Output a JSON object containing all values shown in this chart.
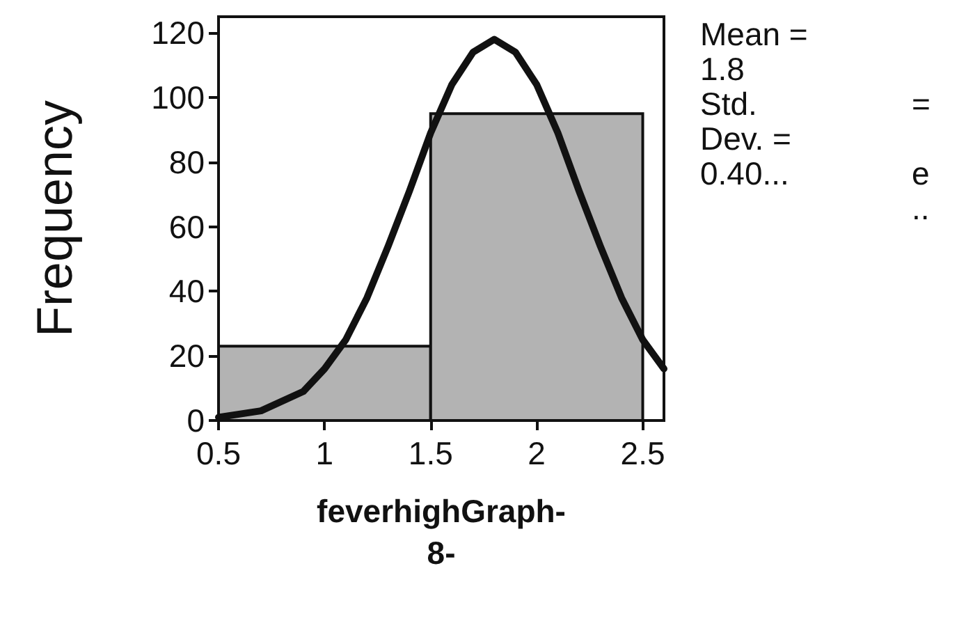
{
  "chart_data": {
    "type": "histogram",
    "xlabel": "feverhighGraph-\n8-",
    "ylabel": "Frequency",
    "annotations": [
      "Mean =\n1.8\nStd.\nDev. =\n0.40...",
      "\n\n=\n\ne\n.."
    ],
    "xlim": [
      0.5,
      2.6
    ],
    "xticks": [
      0.5,
      1,
      1.5,
      2,
      2.5
    ],
    "ylim": [
      0,
      125
    ],
    "yticks": [
      0,
      20,
      40,
      60,
      80,
      100,
      120
    ],
    "grid": false,
    "series": [
      {
        "color": "#b3b3b3",
        "bins": [
          0.5,
          1.5,
          2.5
        ],
        "values": [
          23,
          95
        ]
      },
      {
        "type": "line",
        "color": "#111111",
        "marker": "none",
        "line_style": "solid",
        "x": [
          0.5,
          0.7,
          0.9,
          1.0,
          1.1,
          1.2,
          1.3,
          1.4,
          1.5,
          1.6,
          1.7,
          1.8,
          1.9,
          2.0,
          2.1,
          2.2,
          2.3,
          2.4,
          2.5,
          2.6
        ],
        "values": [
          1,
          3,
          9,
          16,
          25,
          38,
          54,
          71,
          89,
          104,
          114,
          118,
          114,
          104,
          89,
          71,
          54,
          38,
          25,
          16
        ]
      }
    ]
  }
}
